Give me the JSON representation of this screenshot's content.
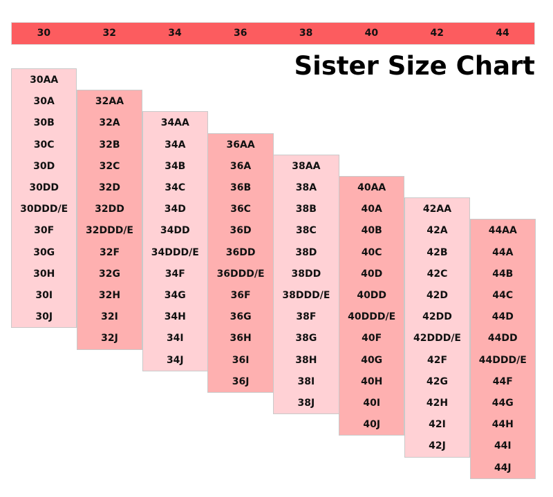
{
  "title": "Sister Size Chart",
  "colors": {
    "header_bar": "#fc5c5f",
    "column_light": "#ffd1d5",
    "column_dark": "#feb0b0"
  },
  "chart_data": {
    "type": "table",
    "title": "Sister Size Chart",
    "band_sizes": [
      "30",
      "32",
      "34",
      "36",
      "38",
      "40",
      "42",
      "44"
    ],
    "columns": [
      {
        "band": "30",
        "sizes": [
          "30AA",
          "30A",
          "30B",
          "30C",
          "30D",
          "30DD",
          "30DDD/E",
          "30F",
          "30G",
          "30H",
          "30I",
          "30J"
        ]
      },
      {
        "band": "32",
        "sizes": [
          "32AA",
          "32A",
          "32B",
          "32C",
          "32D",
          "32DD",
          "32DDD/E",
          "32F",
          "32G",
          "32H",
          "32I",
          "32J"
        ]
      },
      {
        "band": "34",
        "sizes": [
          "34AA",
          "34A",
          "34B",
          "34C",
          "34D",
          "34DD",
          "34DDD/E",
          "34F",
          "34G",
          "34H",
          "34I",
          "34J"
        ]
      },
      {
        "band": "36",
        "sizes": [
          "36AA",
          "36A",
          "36B",
          "36C",
          "36D",
          "36DD",
          "36DDD/E",
          "36F",
          "36G",
          "36H",
          "36I",
          "36J"
        ]
      },
      {
        "band": "38",
        "sizes": [
          "38AA",
          "38A",
          "38B",
          "38C",
          "38D",
          "38DD",
          "38DDD/E",
          "38F",
          "38G",
          "38H",
          "38I",
          "38J"
        ]
      },
      {
        "band": "40",
        "sizes": [
          "40AA",
          "40A",
          "40B",
          "40C",
          "40D",
          "40DD",
          "40DDD/E",
          "40F",
          "40G",
          "40H",
          "40I",
          "40J"
        ]
      },
      {
        "band": "42",
        "sizes": [
          "42AA",
          "42A",
          "42B",
          "42C",
          "42D",
          "42DD",
          "42DDD/E",
          "42F",
          "42G",
          "42H",
          "42I",
          "42J"
        ]
      },
      {
        "band": "44",
        "sizes": [
          "44AA",
          "44A",
          "44B",
          "44C",
          "44D",
          "44DD",
          "44DDD/E",
          "44F",
          "44G",
          "44H",
          "44I",
          "44J"
        ]
      }
    ]
  }
}
